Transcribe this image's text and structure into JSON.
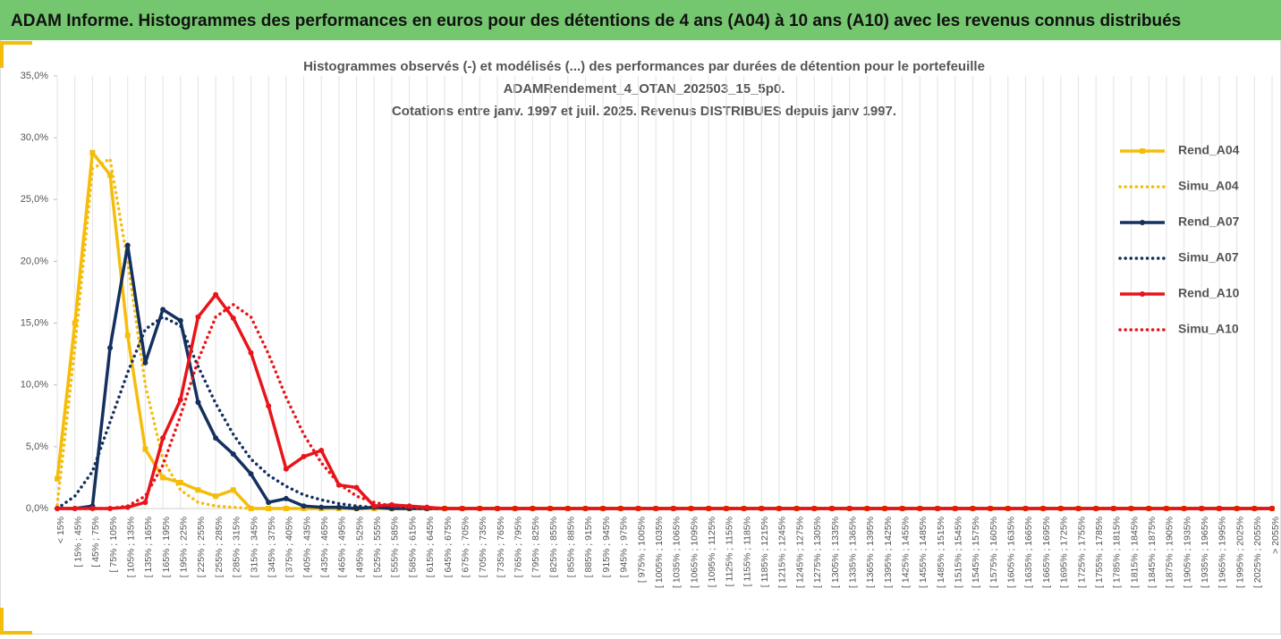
{
  "header": {
    "title": "ADAM Informe. Histogrammes des performances en euros pour des détentions de 4 ans (A04) à 10 ans (A10) avec les revenus connus distribués"
  },
  "chart_data": {
    "type": "line",
    "title": [
      "Histogrammes observés (-) et modélisés (...) des performances par durées de détention pour le portefeuille",
      "ADAMRendement_4_OTAN_202503_15_5p0.",
      "Cotations entre janv. 1997 et juil. 2025. Revenus DISTRIBUES depuis janv 1997."
    ],
    "categories": [
      "< 15%",
      "[ 15% ; 45%",
      "[ 45% ; 75%",
      "[ 75% ; 105%",
      "[ 105% ; 135%",
      "[ 135% ; 165%",
      "[ 165% ; 195%",
      "[ 195% ; 225%",
      "[ 225% ; 255%",
      "[ 255% ; 285%",
      "[ 285% ; 315%",
      "[ 315% ; 345%",
      "[ 345% ; 375%",
      "[ 375% ; 405%",
      "[ 405% ; 435%",
      "[ 435% ; 465%",
      "[ 465% ; 495%",
      "[ 495% ; 525%",
      "[ 525% ; 555%",
      "[ 555% ; 585%",
      "[ 585% ; 615%",
      "[ 615% ; 645%",
      "[ 645% ; 675%",
      "[ 675% ; 705%",
      "[ 705% ; 735%",
      "[ 735% ; 765%",
      "[ 765% ; 795%",
      "[ 795% ; 825%",
      "[ 825% ; 855%",
      "[ 855% ; 885%",
      "[ 885% ; 915%",
      "[ 915% ; 945%",
      "[ 945% ; 975%",
      "[ 975% ; 1005%",
      "[ 1005% ; 1035%",
      "[ 1035% ; 1065%",
      "[ 1065% ; 1095%",
      "[ 1095% ; 1125%",
      "[ 1125% ; 1155%",
      "[ 1155% ; 1185%",
      "[ 1185% ; 1215%",
      "[ 1215% ; 1245%",
      "[ 1245% ; 1275%",
      "[ 1275% ; 1305%",
      "[ 1305% ; 1335%",
      "[ 1335% ; 1365%",
      "[ 1365% ; 1395%",
      "[ 1395% ; 1425%",
      "[ 1425% ; 1455%",
      "[ 1455% ; 1485%",
      "[ 1485% ; 1515%",
      "[ 1515% ; 1545%",
      "[ 1545% ; 1575%",
      "[ 1575% ; 1605%",
      "[ 1605% ; 1635%",
      "[ 1635% ; 1665%",
      "[ 1665% ; 1695%",
      "[ 1695% ; 1725%",
      "[ 1725% ; 1755%",
      "[ 1755% ; 1785%",
      "[ 1785% ; 1815%",
      "[ 1815% ; 1845%",
      "[ 1845% ; 1875%",
      "[ 1875% ; 1905%",
      "[ 1905% ; 1935%",
      "[ 1935% ; 1965%",
      "[ 1965% ; 1995%",
      "[ 1995% ; 2025%",
      "[ 2025% ; 2055%",
      "> 2055%"
    ],
    "series": [
      {
        "name": "Rend_A04",
        "color": "#f5bd0b",
        "dotted": false,
        "marker": "square",
        "values": [
          2.4,
          15,
          28.8,
          27,
          14,
          4.8,
          2.5,
          2.1,
          1.5,
          1.0,
          1.5,
          0,
          0,
          0,
          0,
          0,
          0,
          0,
          0,
          0,
          0,
          0,
          0,
          0,
          0,
          0,
          0,
          0,
          0,
          0,
          0,
          0,
          0,
          0,
          0,
          0,
          0,
          0,
          0,
          0,
          0,
          0,
          0,
          0,
          0,
          0,
          0,
          0,
          0,
          0,
          0,
          0,
          0,
          0,
          0,
          0,
          0,
          0,
          0,
          0,
          0,
          0,
          0,
          0,
          0,
          0,
          0,
          0,
          0,
          0
        ]
      },
      {
        "name": "Simu_A04",
        "color": "#f5bd0b",
        "dotted": true,
        "marker": null,
        "values": [
          0.3,
          13,
          27.5,
          28.3,
          20,
          10,
          4,
          1.5,
          0.5,
          0.2,
          0.1,
          0,
          0,
          0,
          0,
          0,
          0,
          0,
          0,
          0,
          0,
          0,
          0,
          0,
          0,
          0,
          0,
          0,
          0,
          0,
          0,
          0,
          0,
          0,
          0,
          0,
          0,
          0,
          0,
          0,
          0,
          0,
          0,
          0,
          0,
          0,
          0,
          0,
          0,
          0,
          0,
          0,
          0,
          0,
          0,
          0,
          0,
          0,
          0,
          0,
          0,
          0,
          0,
          0,
          0,
          0,
          0,
          0,
          0,
          0
        ]
      },
      {
        "name": "Rend_A07",
        "color": "#14305e",
        "dotted": false,
        "marker": "circle",
        "values": [
          0,
          0,
          0.2,
          13,
          21.3,
          11.8,
          16.1,
          15.2,
          8.6,
          5.7,
          4.4,
          2.8,
          0.5,
          0.8,
          0.2,
          0.1,
          0.1,
          0,
          0.1,
          0,
          0,
          0,
          0,
          0,
          0,
          0,
          0,
          0,
          0,
          0,
          0,
          0,
          0,
          0,
          0,
          0,
          0,
          0,
          0,
          0,
          0,
          0,
          0,
          0,
          0,
          0,
          0,
          0,
          0,
          0,
          0,
          0,
          0,
          0,
          0,
          0,
          0,
          0,
          0,
          0,
          0,
          0,
          0,
          0,
          0,
          0,
          0,
          0,
          0,
          0
        ]
      },
      {
        "name": "Simu_A07",
        "color": "#14305e",
        "dotted": true,
        "marker": null,
        "values": [
          0,
          1,
          3,
          7,
          11,
          14.5,
          15.5,
          14.8,
          11.5,
          8.5,
          6,
          4,
          2.7,
          1.8,
          1.1,
          0.7,
          0.4,
          0.2,
          0.1,
          0,
          0,
          0,
          0,
          0,
          0,
          0,
          0,
          0,
          0,
          0,
          0,
          0,
          0,
          0,
          0,
          0,
          0,
          0,
          0,
          0,
          0,
          0,
          0,
          0,
          0,
          0,
          0,
          0,
          0,
          0,
          0,
          0,
          0,
          0,
          0,
          0,
          0,
          0,
          0,
          0,
          0,
          0,
          0,
          0,
          0,
          0,
          0,
          0,
          0,
          0
        ]
      },
      {
        "name": "Rend_A10",
        "color": "#e8141a",
        "dotted": false,
        "marker": "circle",
        "values": [
          0,
          0,
          0,
          0,
          0.1,
          0.5,
          5.7,
          8.8,
          15.5,
          17.3,
          15.4,
          12.6,
          8.3,
          3.2,
          4.2,
          4.7,
          1.9,
          1.7,
          0.2,
          0.3,
          0.2,
          0.1,
          0,
          0,
          0,
          0,
          0,
          0,
          0,
          0,
          0,
          0,
          0,
          0,
          0,
          0,
          0,
          0,
          0,
          0,
          0,
          0,
          0,
          0,
          0,
          0,
          0,
          0,
          0,
          0,
          0,
          0,
          0,
          0,
          0,
          0,
          0,
          0,
          0,
          0,
          0,
          0,
          0,
          0,
          0,
          0,
          0,
          0,
          0,
          0
        ]
      },
      {
        "name": "Simu_A10",
        "color": "#e8141a",
        "dotted": true,
        "marker": null,
        "values": [
          0,
          0,
          0,
          0,
          0.2,
          1,
          3.5,
          7.5,
          12,
          15.5,
          16.5,
          15.5,
          12.5,
          9,
          6,
          3.7,
          2,
          1,
          0.5,
          0.2,
          0.1,
          0,
          0,
          0,
          0,
          0,
          0,
          0,
          0,
          0,
          0,
          0,
          0,
          0,
          0,
          0,
          0,
          0,
          0,
          0,
          0,
          0,
          0,
          0,
          0,
          0,
          0,
          0,
          0,
          0,
          0,
          0,
          0,
          0,
          0,
          0,
          0,
          0,
          0,
          0,
          0,
          0,
          0,
          0,
          0,
          0,
          0,
          0,
          0,
          0
        ]
      }
    ],
    "ylim": [
      0,
      35
    ],
    "yticks": [
      {
        "value": 0,
        "label": "0,0%"
      },
      {
        "value": 5,
        "label": "5,0%"
      },
      {
        "value": 10,
        "label": "10,0%"
      },
      {
        "value": 15,
        "label": "15,0%"
      },
      {
        "value": 20,
        "label": "20,0%"
      },
      {
        "value": 25,
        "label": "25,0%"
      },
      {
        "value": 30,
        "label": "30,0%"
      },
      {
        "value": 35,
        "label": "35,0%"
      }
    ],
    "grid": true,
    "legend": "right"
  }
}
